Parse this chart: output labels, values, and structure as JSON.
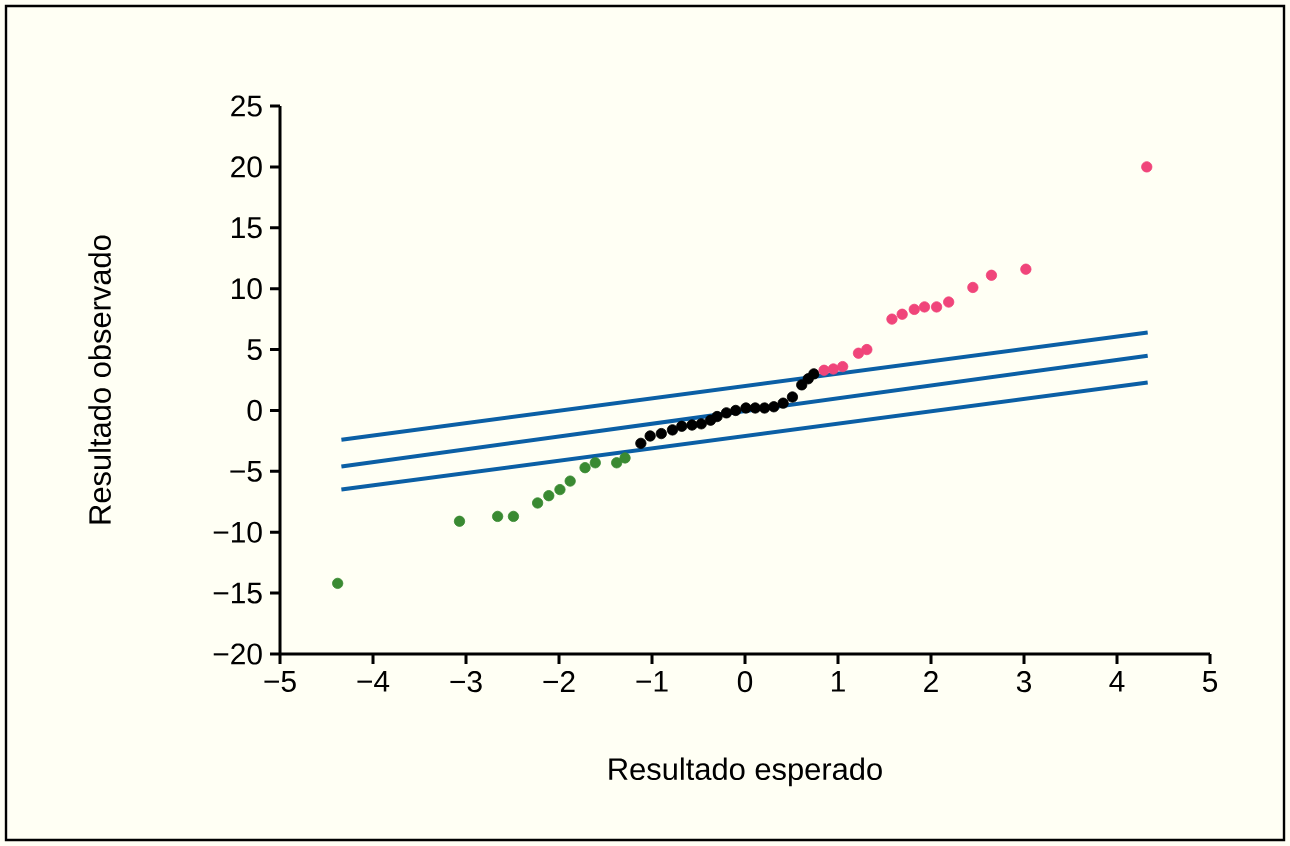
{
  "chart_data": {
    "type": "scatter",
    "xlabel": "Resultado esperado",
    "ylabel": "Resultado observado",
    "xlim": [
      -5,
      5
    ],
    "ylim": [
      -20,
      25
    ],
    "xticks": [
      {
        "value": -5,
        "label": "−5"
      },
      {
        "value": -4,
        "label": "−4"
      },
      {
        "value": -3,
        "label": "−3"
      },
      {
        "value": -2,
        "label": "−2"
      },
      {
        "value": -1,
        "label": "−1"
      },
      0,
      1,
      2,
      3,
      4,
      5
    ],
    "yticks": [
      {
        "value": -20,
        "label": "−20"
      },
      {
        "value": -15,
        "label": "−15"
      },
      {
        "value": -10,
        "label": "−10"
      },
      {
        "value": -5,
        "label": "−5"
      },
      0,
      5,
      10,
      15,
      20,
      25
    ],
    "grid": false,
    "series": [
      {
        "color": "#3a8a32",
        "x": [
          -4.38,
          -3.07,
          -2.66,
          -2.49,
          -2.23,
          -2.11,
          -1.99,
          -1.88,
          -1.72,
          -1.61,
          -1.38,
          -1.29
        ],
        "values": [
          -14.2,
          -9.1,
          -8.7,
          -8.7,
          -7.6,
          -7.0,
          -6.5,
          -5.8,
          -4.7,
          -4.3,
          -4.3,
          -3.9
        ]
      },
      {
        "color": "#000000",
        "x": [
          -1.12,
          -1.02,
          -0.9,
          -0.78,
          -0.68,
          -0.57,
          -0.47,
          -0.37,
          -0.3,
          -0.2,
          -0.1,
          0.01,
          0.11,
          0.21,
          0.31,
          0.41,
          0.51,
          0.61,
          0.68,
          0.74
        ],
        "values": [
          -2.7,
          -2.1,
          -1.9,
          -1.6,
          -1.3,
          -1.2,
          -1.1,
          -0.8,
          -0.5,
          -0.2,
          0.0,
          0.2,
          0.2,
          0.2,
          0.3,
          0.6,
          1.1,
          2.1,
          2.6,
          3.0
        ]
      },
      {
        "color": "#f0457a",
        "x": [
          0.85,
          0.95,
          1.05,
          1.22,
          1.31,
          1.58,
          1.69,
          1.82,
          1.93,
          2.06,
          2.19,
          2.45,
          2.65,
          3.02,
          4.32
        ],
        "values": [
          3.3,
          3.4,
          3.6,
          4.7,
          5.0,
          7.5,
          7.9,
          8.3,
          8.5,
          8.5,
          8.9,
          10.1,
          11.1,
          11.6,
          20.0
        ]
      },
      {
        "type": "line",
        "color": "#0b5fa5",
        "x": [
          -4.34,
          4.33
        ],
        "values": [
          -2.4,
          6.4
        ]
      },
      {
        "type": "line",
        "color": "#0b5fa5",
        "x": [
          -4.34,
          4.33
        ],
        "values": [
          -4.6,
          4.5
        ]
      },
      {
        "type": "line",
        "color": "#0b5fa5",
        "x": [
          -4.34,
          4.33
        ],
        "values": [
          -6.5,
          2.3
        ]
      }
    ]
  }
}
